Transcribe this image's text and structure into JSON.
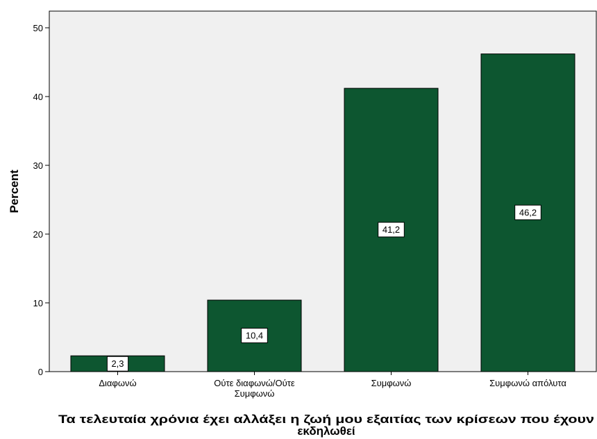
{
  "chart_data": {
    "type": "bar",
    "categories": [
      "Διαφωνώ",
      "Ούτε διαφωνώ/Ούτε Συμφωνώ",
      "Συμφωνώ",
      "Συμφωνώ απόλυτα"
    ],
    "category_lines": [
      [
        "Διαφωνώ"
      ],
      [
        "Ούτε διαφωνώ/Ούτε",
        "Συμφωνώ"
      ],
      [
        "Συμφωνώ"
      ],
      [
        "Συμφωνώ απόλυτα"
      ]
    ],
    "values": [
      2.3,
      10.4,
      41.2,
      46.2
    ],
    "data_labels": [
      "2,3",
      "10,4",
      "41,2",
      "46,2"
    ],
    "ylabel": "Percent",
    "xlabel": "Τα τελευταία χρόνια έχει αλλάξει η ζωή μου εξαιτίας των κρίσεων που έχουν εκδηλωθεί",
    "xlabel_lines": [
      "Τα τελευταία χρόνια έχει αλλάξει η ζωή μου εξαιτίας των κρίσεων που έχουν",
      "εκδηλωθεί"
    ],
    "ylim": [
      0,
      50
    ],
    "yticks": [
      0,
      10,
      20,
      30,
      40,
      50
    ],
    "colors": {
      "bar": "#0d5630",
      "plot_bg": "#f0f0f0",
      "label_bg": "#ffffff"
    },
    "grid": false,
    "legend": "none"
  }
}
